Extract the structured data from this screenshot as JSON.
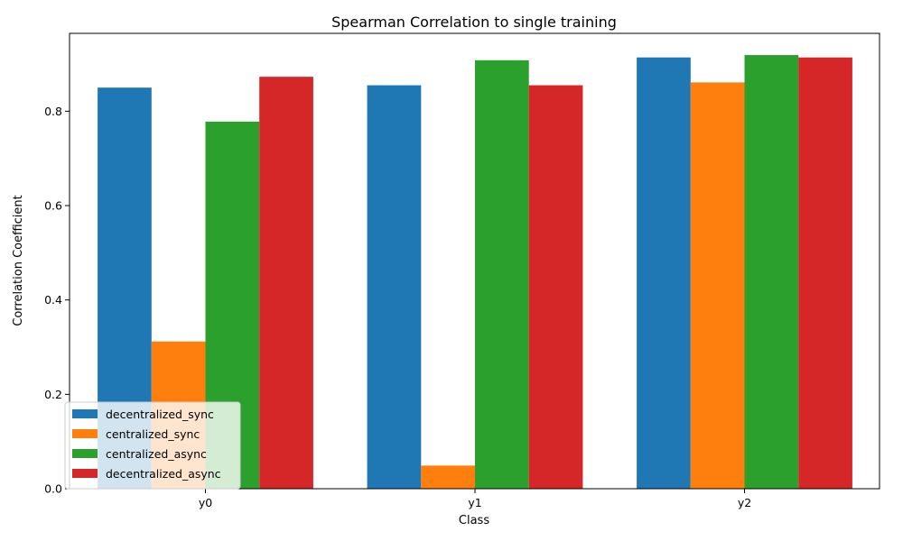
{
  "chart_data": {
    "type": "bar",
    "title": "Spearman Correlation to single training",
    "xlabel": "Class",
    "ylabel": "Correlation Coefficient",
    "categories": [
      "y0",
      "y1",
      "y2"
    ],
    "ylim": [
      0,
      0.965
    ],
    "yticks": [
      "0.0",
      "0.2",
      "0.4",
      "0.6",
      "0.8"
    ],
    "grid": false,
    "legend_position": "lower-left",
    "series": [
      {
        "name": "decentralized_sync",
        "color": "#1f77b4",
        "values": [
          0.85,
          0.855,
          0.914
        ]
      },
      {
        "name": "centralized_sync",
        "color": "#ff7f0e",
        "values": [
          0.312,
          0.049,
          0.861
        ]
      },
      {
        "name": "centralized_async",
        "color": "#2ca02c",
        "values": [
          0.778,
          0.908,
          0.919
        ]
      },
      {
        "name": "decentralized_async",
        "color": "#d62728",
        "values": [
          0.873,
          0.855,
          0.914
        ]
      }
    ]
  }
}
